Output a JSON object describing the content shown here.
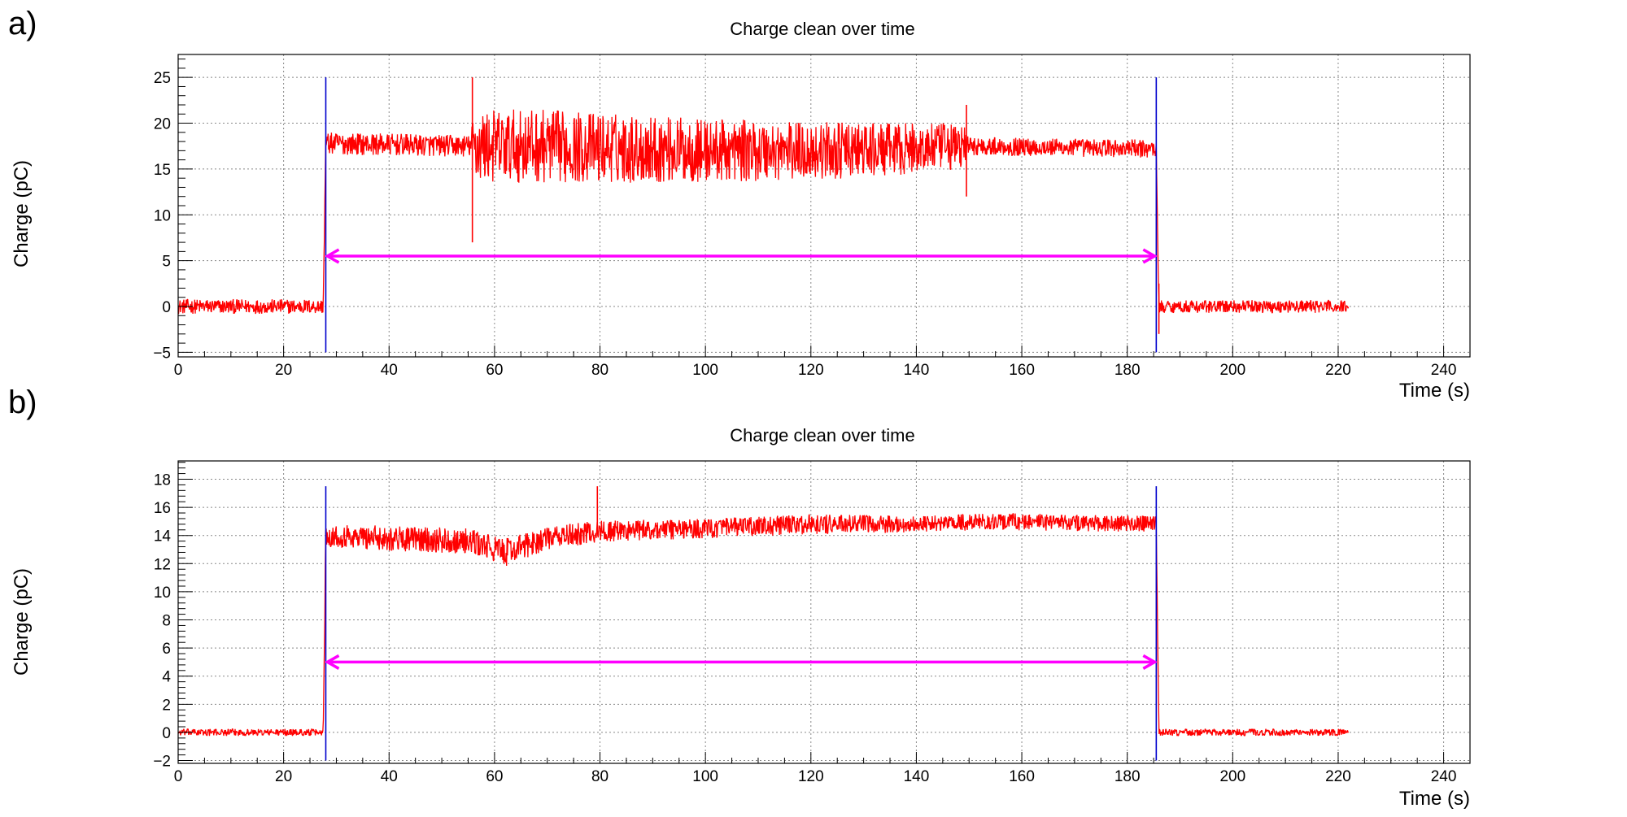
{
  "panels": [
    {
      "tag": "a)"
    },
    {
      "tag": "b)"
    }
  ],
  "colors": {
    "signal": "#ff0000",
    "marker": "#0000cc",
    "arrow": "#ff00ff",
    "grid": "#888888",
    "axis": "#000000"
  },
  "chart_data": [
    {
      "type": "line",
      "title": "Charge clean over time",
      "xlabel": "Time (s)",
      "ylabel": "Charge (pC)",
      "xlim": [
        0,
        245
      ],
      "ylim": [
        -5.5,
        27.5
      ],
      "x_ticks": [
        0,
        20,
        40,
        60,
        80,
        100,
        120,
        140,
        160,
        180,
        200,
        220,
        240
      ],
      "y_ticks": [
        -5,
        0,
        5,
        10,
        15,
        20,
        25
      ],
      "grid": true,
      "series": [
        {
          "color": "#ff0000",
          "x": [
            0,
            27.5,
            28,
            55.5,
            56,
            70,
            100,
            130,
            149,
            150,
            185.5,
            186,
            222
          ],
          "y": [
            0,
            0,
            17.8,
            17.5,
            17.5,
            17.5,
            17.0,
            17.0,
            17.5,
            17.5,
            17.2,
            0,
            0
          ],
          "noise_halfwidth": [
            0.8,
            0.8,
            1.2,
            1.2,
            4.0,
            4.0,
            3.5,
            3.0,
            2.5,
            1.0,
            1.0,
            0.7,
            0.7
          ]
        }
      ],
      "spikes": [
        {
          "x": 55.8,
          "y_low": 7,
          "y_high": 25
        },
        {
          "x": 149.5,
          "y_low": 12,
          "y_high": 22
        },
        {
          "x": 186,
          "y_low": -3,
          "y_high": 2.5
        }
      ],
      "vertical_markers": [
        {
          "x": 28,
          "y_low": -5,
          "y_high": 25
        },
        {
          "x": 185.5,
          "y_low": -5,
          "y_high": 25
        }
      ],
      "arrow": {
        "x_start": 28,
        "x_end": 185.5,
        "y": 5.5
      }
    },
    {
      "type": "line",
      "title": "Charge clean over time",
      "xlabel": "Time (s)",
      "ylabel": "Charge (pC)",
      "xlim": [
        0,
        245
      ],
      "ylim": [
        -2.2,
        19.3
      ],
      "x_ticks": [
        0,
        20,
        40,
        60,
        80,
        100,
        120,
        140,
        160,
        180,
        200,
        220,
        240
      ],
      "y_ticks": [
        -2,
        0,
        2,
        4,
        6,
        8,
        10,
        12,
        14,
        16,
        18
      ],
      "grid": true,
      "series": [
        {
          "color": "#ff0000",
          "x": [
            0,
            27.5,
            28,
            40,
            55,
            62,
            70,
            80,
            100,
            120,
            140,
            155,
            170,
            185.5,
            186,
            222
          ],
          "y": [
            0,
            0,
            14.0,
            13.8,
            13.6,
            12.8,
            13.8,
            14.3,
            14.5,
            14.8,
            14.8,
            15.0,
            14.9,
            14.8,
            0,
            0
          ],
          "noise_halfwidth": [
            0.25,
            0.25,
            0.8,
            0.9,
            0.9,
            1.0,
            0.8,
            0.8,
            0.7,
            0.7,
            0.6,
            0.6,
            0.6,
            0.6,
            0.25,
            0.25
          ]
        }
      ],
      "spikes": [
        {
          "x": 79.5,
          "y_low": 14.5,
          "y_high": 17.5
        }
      ],
      "vertical_markers": [
        {
          "x": 28,
          "y_low": -2,
          "y_high": 17.5
        },
        {
          "x": 185.5,
          "y_low": -2,
          "y_high": 17.5
        }
      ],
      "arrow": {
        "x_start": 28,
        "x_end": 185.5,
        "y": 5
      }
    }
  ]
}
